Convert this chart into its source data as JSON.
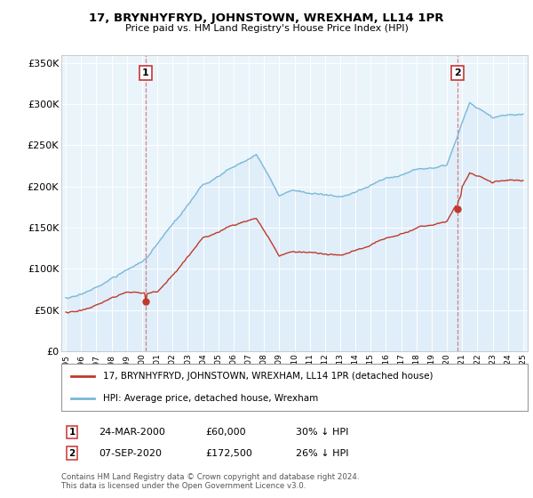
{
  "title": "17, BRYNHYFRYD, JOHNSTOWN, WREXHAM, LL14 1PR",
  "subtitle": "Price paid vs. HM Land Registry's House Price Index (HPI)",
  "hpi_color": "#7ab8d9",
  "hpi_fill_color": "#d6eaf8",
  "price_color": "#c0392b",
  "background_color": "#ffffff",
  "plot_bg_color": "#eaf4fb",
  "grid_color": "#ffffff",
  "ylim": [
    0,
    360000
  ],
  "yticks": [
    0,
    50000,
    100000,
    150000,
    200000,
    250000,
    300000,
    350000
  ],
  "ytick_labels": [
    "£0",
    "£50K",
    "£100K",
    "£150K",
    "£200K",
    "£250K",
    "£300K",
    "£350K"
  ],
  "legend_label_price": "17, BRYNHYFRYD, JOHNSTOWN, WREXHAM, LL14 1PR (detached house)",
  "legend_label_hpi": "HPI: Average price, detached house, Wrexham",
  "sale1_date": "24-MAR-2000",
  "sale1_price": "£60,000",
  "sale1_hpi": "30% ↓ HPI",
  "sale1_year": 2000.23,
  "sale1_value": 60000,
  "sale2_date": "07-SEP-2020",
  "sale2_price": "£172,500",
  "sale2_hpi": "26% ↓ HPI",
  "sale2_year": 2020.69,
  "sale2_value": 172500,
  "footer": "Contains HM Land Registry data © Crown copyright and database right 2024.\nThis data is licensed under the Open Government Licence v3.0.",
  "vline_color": "#cc3333",
  "vline_alpha": 0.6
}
